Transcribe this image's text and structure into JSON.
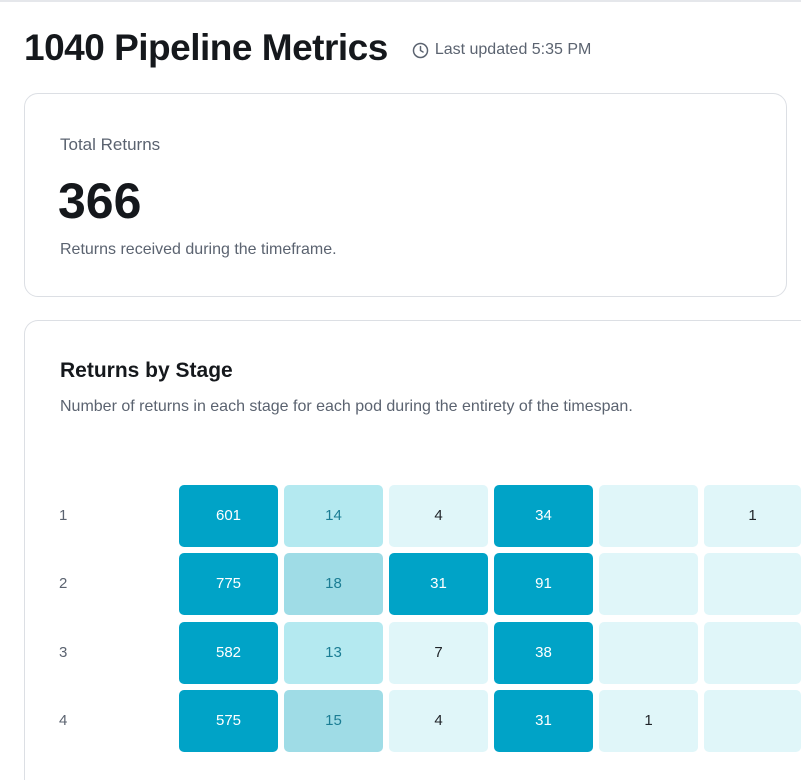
{
  "header": {
    "title": "1040 Pipeline Metrics",
    "updated": "Last updated 5:35 PM"
  },
  "total_card": {
    "label": "Total Returns",
    "value": "366",
    "description": "Returns received during the timeframe."
  },
  "stage_card": {
    "title": "Returns by Stage",
    "subtitle": "Number of returns in each stage for each pod during the entirety of the timespan.",
    "rows": [
      {
        "label": "1",
        "cells": [
          "601",
          "14",
          "4",
          "34",
          "",
          "1"
        ]
      },
      {
        "label": "2",
        "cells": [
          "775",
          "18",
          "31",
          "91",
          "",
          ""
        ]
      },
      {
        "label": "3",
        "cells": [
          "582",
          "13",
          "7",
          "38",
          "",
          ""
        ]
      },
      {
        "label": "4",
        "cells": [
          "575",
          "15",
          "4",
          "31",
          "1",
          ""
        ]
      }
    ]
  },
  "colors": {
    "high": "#00a3c7",
    "mid": "#9fdce6",
    "low": "#b4e9f0",
    "empty": "#e0f6f9"
  },
  "icons": {
    "updated": "clock-icon"
  }
}
